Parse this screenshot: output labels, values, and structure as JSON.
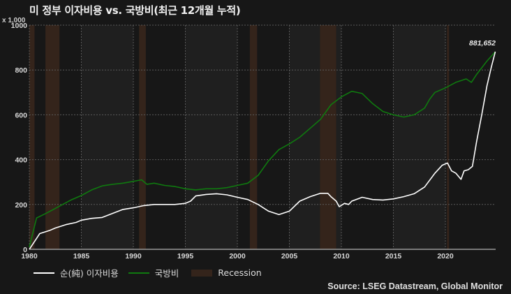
{
  "title": "미 정부 이자비용 vs. 국방비(최근 12개월 누적)",
  "y_unit_label": "x 1,000",
  "end_label": "881,652",
  "source": "Source: LSEG Datastream, Global Monitor",
  "legend": [
    {
      "label": "순(純) 이자비용",
      "type": "line",
      "color": "#ffffff"
    },
    {
      "label": "국방비",
      "type": "line",
      "color": "#0f7a0f"
    },
    {
      "label": "Recession",
      "type": "box",
      "color": "#34241b"
    }
  ],
  "colors": {
    "background": "#171717",
    "band_light": "#1f1f1f",
    "band_dark": "#171717",
    "grid": "#5a5a5a",
    "recession": "#34241b",
    "interest": "#ffffff",
    "defense": "#0f7a0f",
    "axis_text": "#d8d8d8"
  },
  "chart_data": {
    "type": "line",
    "title": "미 정부 이자비용 vs. 국방비(최근 12개월 누적)",
    "xlabel": "",
    "ylabel": "x 1,000",
    "xlim": [
      1980,
      2024.85
    ],
    "ylim": [
      0,
      1000
    ],
    "x_ticks": [
      1980,
      1985,
      1990,
      1995,
      2000,
      2005,
      2010,
      2015,
      2020
    ],
    "y_ticks": [
      0,
      200,
      400,
      600,
      800,
      1000
    ],
    "grid": true,
    "legend_position": "bottom-left",
    "annotations": [
      {
        "text": "881,652",
        "x": 2024.8,
        "y": 881.652
      }
    ],
    "recessions": [
      [
        1980.0,
        1980.5
      ],
      [
        1981.55,
        1982.9
      ],
      [
        1990.55,
        1991.2
      ],
      [
        2001.2,
        2001.9
      ],
      [
        2007.95,
        2009.5
      ],
      [
        2020.15,
        2020.35
      ]
    ],
    "series": [
      {
        "name": "순(純) 이자비용",
        "color": "#ffffff",
        "x": [
          1980,
          1980.5,
          1981,
          1982,
          1982.5,
          1983.5,
          1984.5,
          1985,
          1986,
          1987,
          1988,
          1989,
          1990,
          1991,
          1992,
          1993,
          1994,
          1995,
          1995.5,
          1996,
          1997,
          1998,
          1999,
          2000,
          2001,
          2002,
          2003,
          2004,
          2005,
          2006,
          2007,
          2008,
          2008.7,
          2009,
          2009.5,
          2009.8,
          2010.3,
          2010.7,
          2011,
          2012,
          2013,
          2014,
          2015,
          2016,
          2017,
          2018,
          2019,
          2019.7,
          2020.2,
          2020.6,
          2021,
          2021.5,
          2021.8,
          2022.2,
          2022.6,
          2023,
          2023.5,
          2024,
          2024.4,
          2024.8
        ],
        "values": [
          0,
          35,
          70,
          85,
          95,
          110,
          120,
          130,
          138,
          142,
          160,
          178,
          185,
          195,
          200,
          200,
          200,
          205,
          215,
          238,
          245,
          248,
          243,
          232,
          222,
          200,
          170,
          155,
          170,
          215,
          235,
          250,
          250,
          235,
          215,
          190,
          205,
          200,
          215,
          232,
          222,
          220,
          225,
          235,
          248,
          278,
          340,
          375,
          385,
          350,
          340,
          312,
          350,
          355,
          370,
          480,
          600,
          730,
          810,
          881.652
        ]
      },
      {
        "name": "국방비",
        "color": "#0f7a0f",
        "x": [
          1980,
          1980.7,
          1981.5,
          1982,
          1983,
          1984,
          1985,
          1986,
          1987,
          1988,
          1989,
          1990,
          1990.8,
          1991.3,
          1992,
          1993,
          1994,
          1995,
          1996,
          1997,
          1998,
          1999,
          2000,
          2001,
          2002,
          2003,
          2004,
          2005,
          2006,
          2007,
          2008,
          2009,
          2010,
          2011,
          2012,
          2013,
          2014,
          2015,
          2016,
          2017,
          2018,
          2018.5,
          2019,
          2020,
          2021,
          2022,
          2022.5,
          2023,
          2024,
          2024.8
        ],
        "values": [
          10,
          140,
          158,
          170,
          195,
          220,
          240,
          265,
          283,
          290,
          295,
          303,
          310,
          290,
          295,
          285,
          280,
          270,
          265,
          270,
          270,
          275,
          285,
          295,
          330,
          395,
          445,
          470,
          500,
          540,
          580,
          645,
          680,
          705,
          695,
          650,
          615,
          600,
          590,
          600,
          630,
          670,
          700,
          720,
          745,
          760,
          745,
          780,
          840,
          881.652
        ]
      }
    ]
  }
}
